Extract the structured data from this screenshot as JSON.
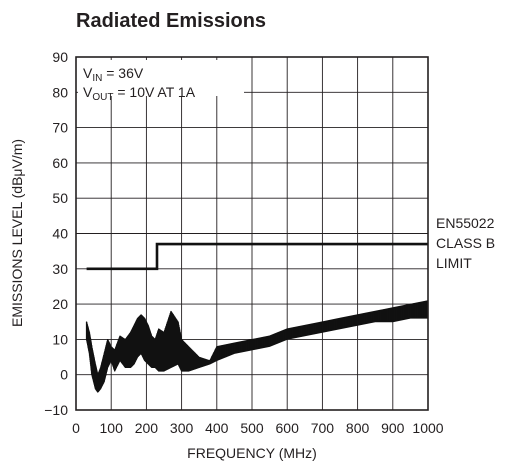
{
  "chart_data": {
    "type": "line",
    "title": "Radiated Emissions",
    "xlabel": "FREQUENCY (MHz)",
    "ylabel": "EMISSIONS LEVEL (dBμV/m)",
    "xlim": [
      0,
      1000
    ],
    "ylim": [
      -10,
      90
    ],
    "x_ticks": [
      "0",
      "100",
      "200",
      "300",
      "400",
      "500",
      "600",
      "700",
      "800",
      "900",
      "1000"
    ],
    "y_ticks": [
      "90",
      "80",
      "70",
      "60",
      "50",
      "40",
      "30",
      "20",
      "10",
      "0",
      "−10"
    ],
    "grid": true,
    "annotation": {
      "vin_main": "V",
      "vin_sub": "IN",
      "vin_rest": " = 36V",
      "vout_main": "V",
      "vout_sub": "OUT",
      "vout_rest": " = 10V AT 1A"
    },
    "limit_label": [
      "EN55022",
      "CLASS B",
      "LIMIT"
    ],
    "series": [
      {
        "role": "limit",
        "x": [
          30,
          230,
          230,
          1000
        ],
        "y": [
          30,
          30,
          37,
          37
        ]
      },
      {
        "role": "emissions-upper",
        "x": [
          30,
          38,
          45,
          55,
          62,
          70,
          80,
          90,
          100,
          110,
          125,
          140,
          155,
          165,
          175,
          185,
          195,
          205,
          215,
          225,
          235,
          250,
          270,
          290,
          300,
          320,
          350,
          380,
          400,
          450,
          500,
          550,
          600,
          650,
          700,
          750,
          800,
          850,
          900,
          950,
          1000
        ],
        "y": [
          15,
          12,
          8,
          3,
          0,
          2,
          6,
          10,
          8,
          7,
          11,
          10,
          12,
          14,
          16,
          17,
          16,
          14,
          11,
          10,
          13,
          12,
          18,
          15,
          10,
          8,
          5,
          4,
          8,
          9,
          10,
          11,
          13,
          14,
          15,
          16,
          17,
          18,
          19,
          20,
          21
        ]
      },
      {
        "role": "emissions-lower",
        "x": [
          30,
          38,
          45,
          55,
          62,
          70,
          80,
          90,
          100,
          110,
          125,
          140,
          155,
          165,
          175,
          185,
          195,
          205,
          215,
          225,
          235,
          250,
          270,
          290,
          300,
          320,
          350,
          380,
          400,
          450,
          500,
          550,
          600,
          650,
          700,
          750,
          800,
          850,
          900,
          950,
          1000
        ],
        "y": [
          10,
          6,
          0,
          -4,
          -5,
          -4,
          -2,
          2,
          4,
          1,
          4,
          2,
          2,
          3,
          5,
          6,
          4,
          3,
          2,
          2,
          1,
          1,
          2,
          3,
          1,
          1,
          2,
          3,
          4,
          6,
          7,
          8,
          10,
          11,
          12,
          13,
          14,
          15,
          15,
          16,
          16
        ]
      }
    ]
  }
}
